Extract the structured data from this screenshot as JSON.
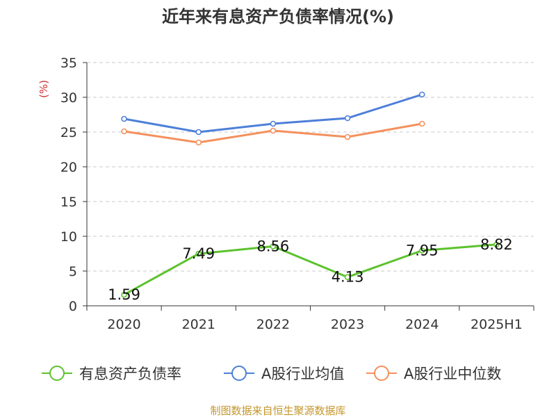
{
  "chart_data": {
    "type": "line",
    "title": "近年来有息资产负债率情况(%)",
    "ylabel": "(%)",
    "xlabel": "",
    "ylim": [
      0,
      35
    ],
    "yticks": [
      0,
      5,
      10,
      15,
      20,
      25,
      30,
      35
    ],
    "grid": true,
    "legend_position": "bottom",
    "categories": [
      "2020",
      "2021",
      "2022",
      "2023",
      "2024",
      "2025H1"
    ],
    "series": [
      {
        "name": "有息资产负债率",
        "color": "#5cc22d",
        "values": [
          1.59,
          7.49,
          8.56,
          4.13,
          7.95,
          8.82
        ],
        "show_labels": true
      },
      {
        "name": "A股行业均值",
        "color": "#4d7fd9",
        "values": [
          26.9,
          25.0,
          26.2,
          27.0,
          30.4,
          null
        ],
        "show_labels": false
      },
      {
        "name": "A股行业中位数",
        "color": "#f4905c",
        "values": [
          25.1,
          23.5,
          25.2,
          24.3,
          26.2,
          null
        ],
        "show_labels": false
      }
    ]
  },
  "footer": {
    "source": "制图数据来自恒生聚源数据库",
    "color": "#c4972c"
  },
  "ylabel_color": "#d03030"
}
